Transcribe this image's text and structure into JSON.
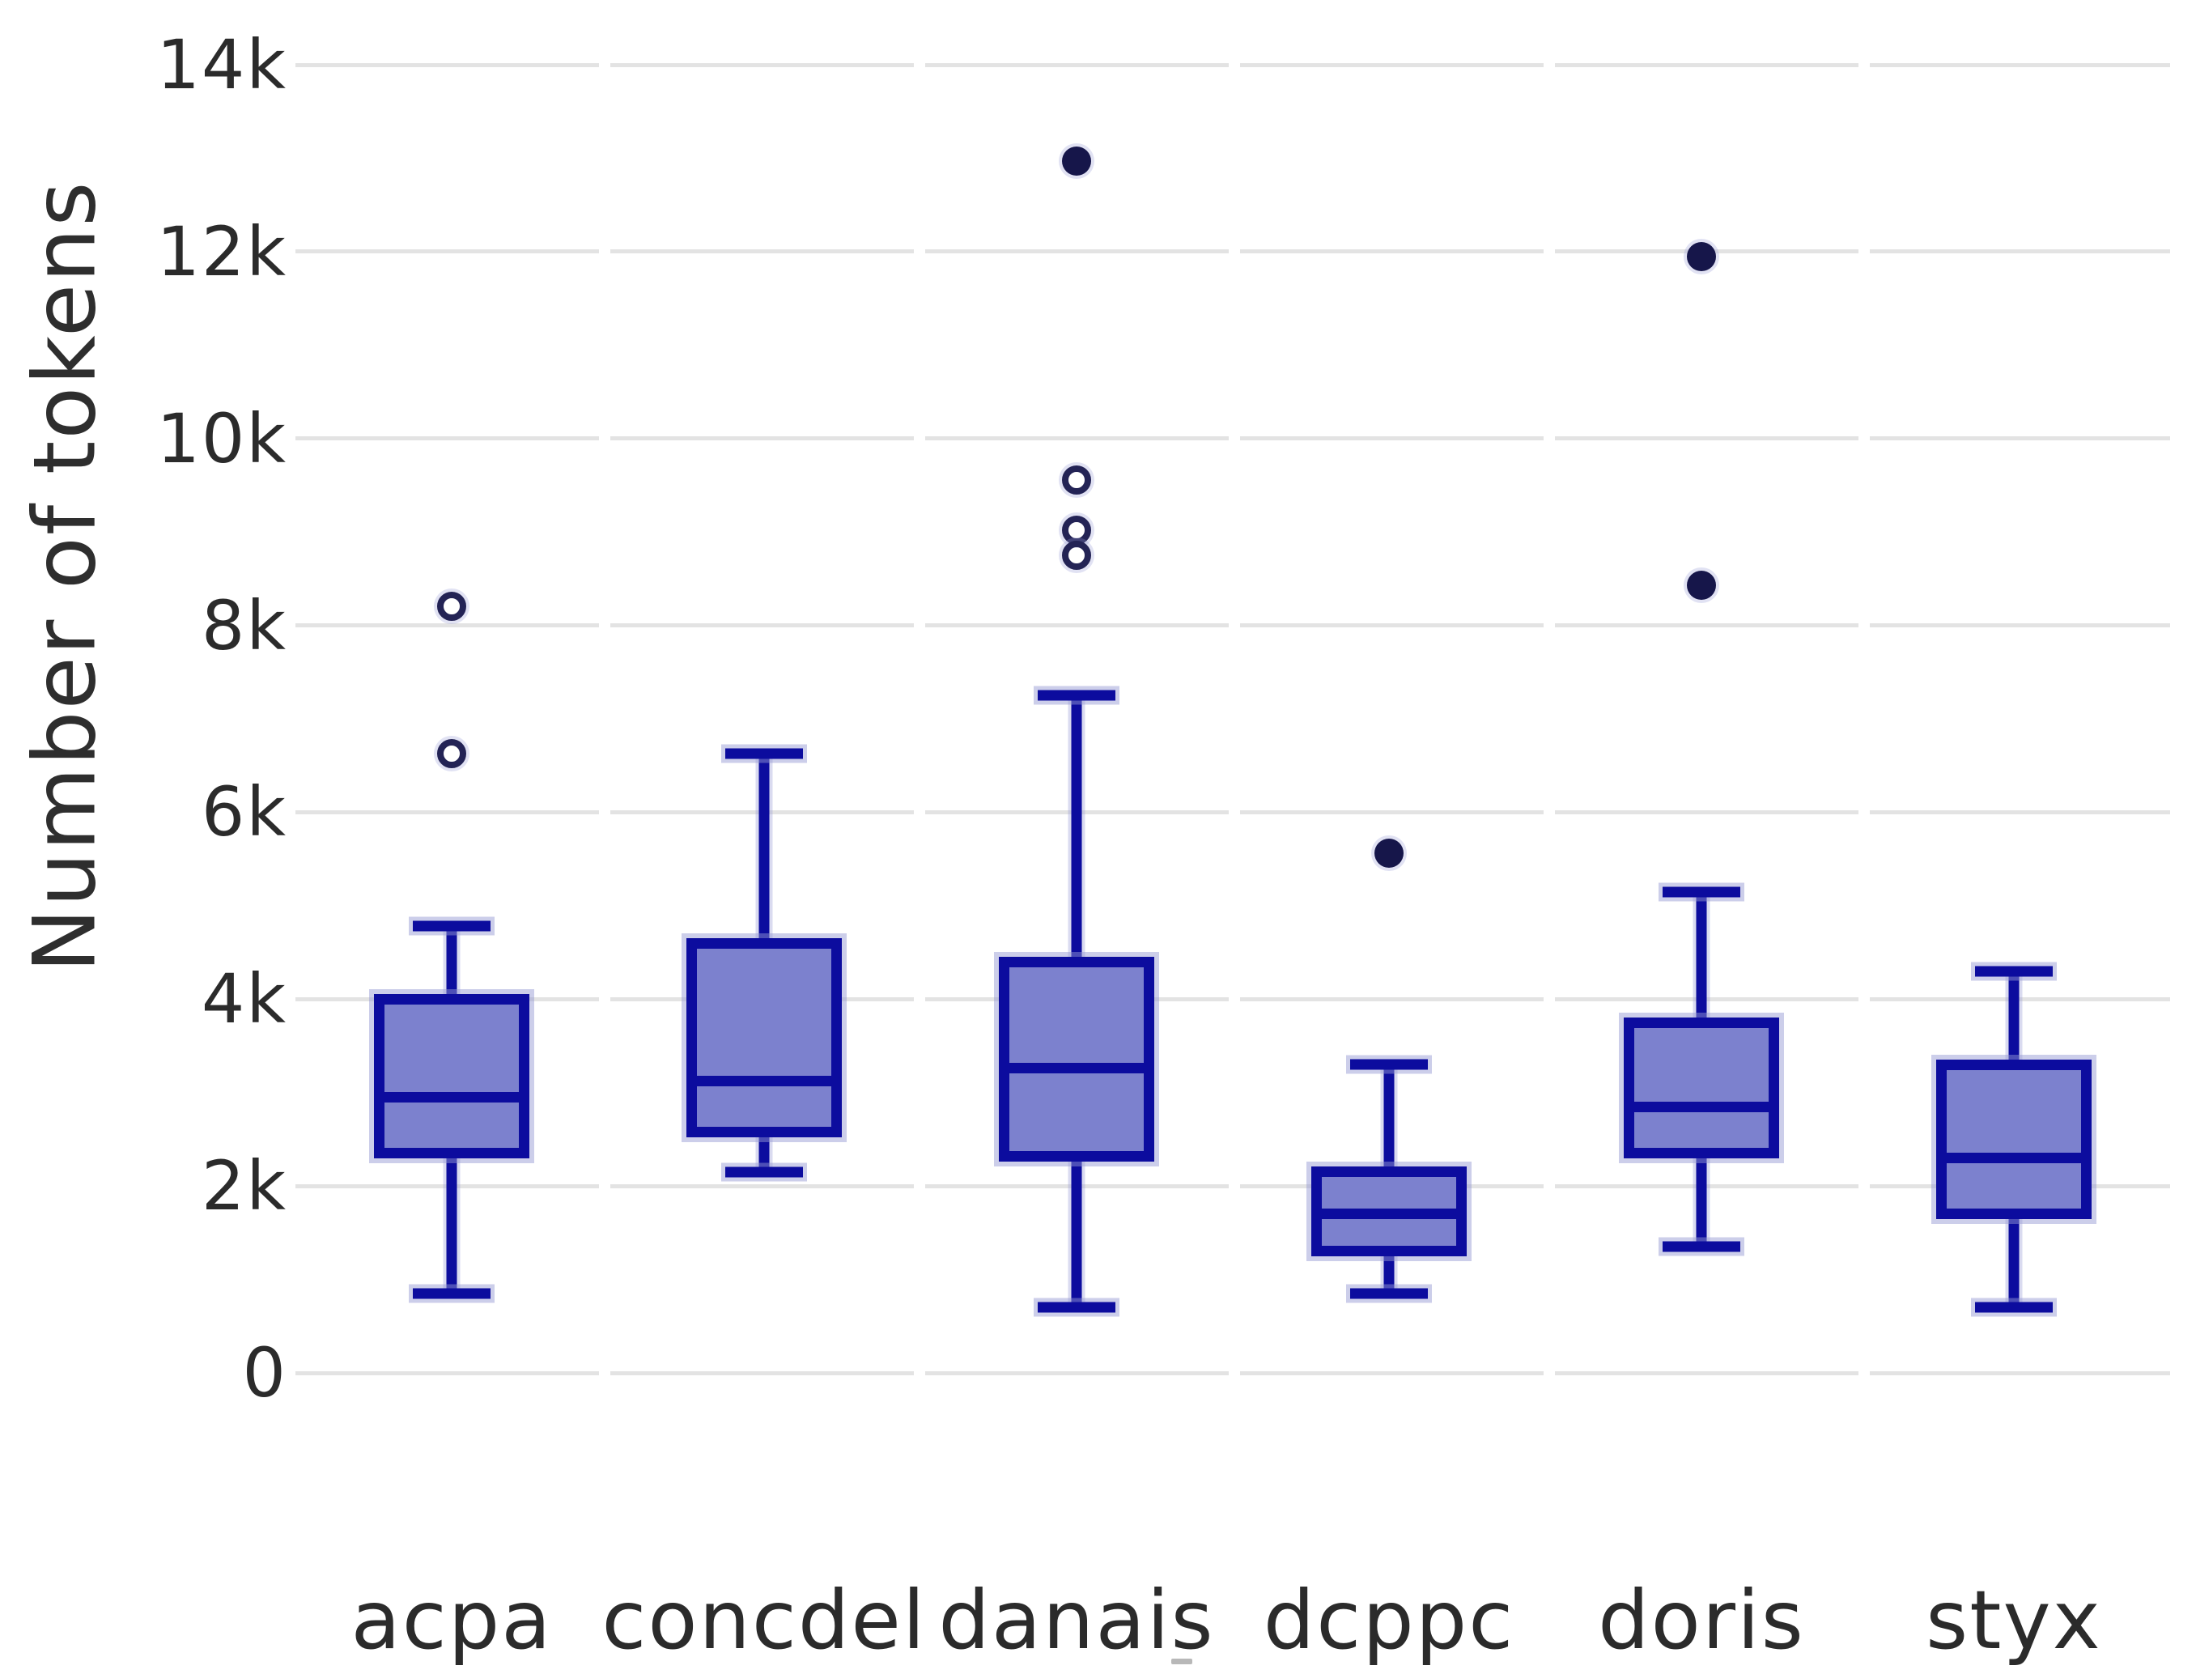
{
  "chart_data": {
    "type": "box",
    "title": "",
    "xlabel": "",
    "ylabel": "Number of tokens",
    "categories": [
      "acpa",
      "concdel",
      "danais",
      "dcppc",
      "doris",
      "styx"
    ],
    "ylim": [
      0,
      14000
    ],
    "grid": true,
    "legend": "none",
    "y_ticks": [
      {
        "label": "0",
        "value": 0
      },
      {
        "label": "2k",
        "value": 2000
      },
      {
        "label": "4k",
        "value": 4000
      },
      {
        "label": "6k",
        "value": 6000
      },
      {
        "label": "8k",
        "value": 8000
      },
      {
        "label": "10k",
        "value": 10000
      },
      {
        "label": "12k",
        "value": 12000
      },
      {
        "label": "14k",
        "value": 14000
      }
    ],
    "series": [
      {
        "name": "acpa",
        "min": 850,
        "q1": 2350,
        "median": 2950,
        "q3": 4000,
        "max": 4780,
        "outliers": [
          {
            "value": 8200,
            "style": "open"
          },
          {
            "value": 6630,
            "style": "open"
          }
        ]
      },
      {
        "name": "concdel",
        "min": 2150,
        "q1": 2580,
        "median": 3120,
        "q3": 4600,
        "max": 6630,
        "outliers": []
      },
      {
        "name": "danais",
        "min": 700,
        "q1": 2320,
        "median": 3260,
        "q3": 4400,
        "max": 7250,
        "outliers": [
          {
            "value": 12970,
            "style": "filled"
          },
          {
            "value": 9560,
            "style": "open"
          },
          {
            "value": 9020,
            "style": "open"
          },
          {
            "value": 8750,
            "style": "open"
          }
        ]
      },
      {
        "name": "dcppc",
        "min": 850,
        "q1": 1300,
        "median": 1700,
        "q3": 2150,
        "max": 3300,
        "outliers": [
          {
            "value": 5560,
            "style": "filled"
          }
        ]
      },
      {
        "name": "doris",
        "min": 1350,
        "q1": 2350,
        "median": 2850,
        "q3": 3750,
        "max": 5150,
        "outliers": [
          {
            "value": 11950,
            "style": "filled"
          },
          {
            "value": 8430,
            "style": "filled"
          }
        ]
      },
      {
        "name": "styx",
        "min": 700,
        "q1": 1700,
        "median": 2300,
        "q3": 3300,
        "max": 4300,
        "outliers": []
      }
    ]
  },
  "colors": {
    "box_fill": "#7c81ce",
    "box_border": "#0c0c9e",
    "outlier_filled": "#16164a",
    "outlier_ring": "#232355",
    "gridline": "#e3e3e3",
    "tick_text": "#2b2b2b",
    "axis_title_text": "#2e2e2e",
    "background": "#ffffff"
  }
}
